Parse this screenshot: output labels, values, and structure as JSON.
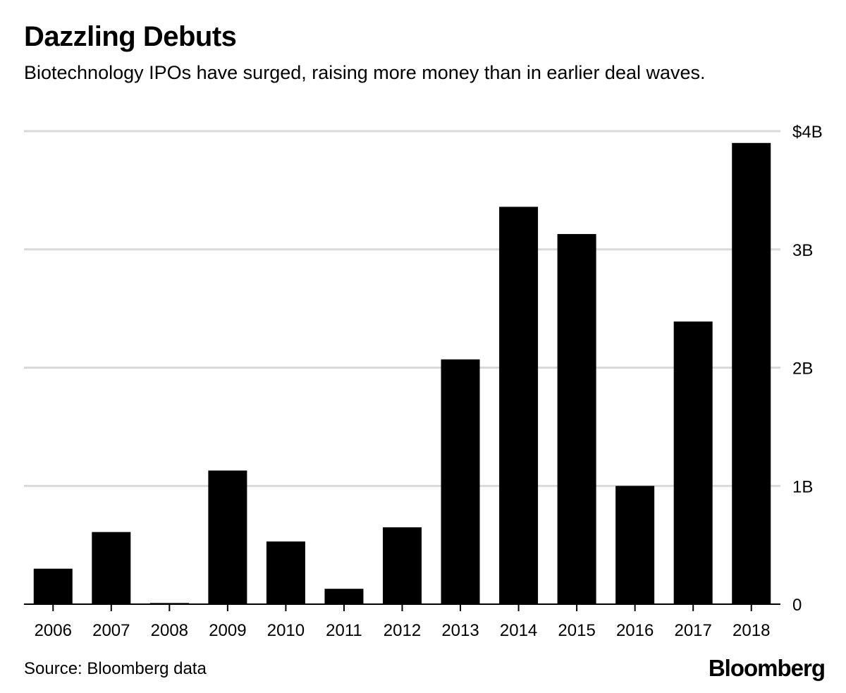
{
  "header": {
    "title": "Dazzling Debuts",
    "subtitle": "Biotechnology IPOs have surged, raising more money than in earlier deal waves."
  },
  "footer": {
    "source": "Source: Bloomberg data",
    "brand": "Bloomberg"
  },
  "colors": {
    "bar": "#000000",
    "grid": "#d9d9d9",
    "axis": "#000000"
  },
  "chart_data": {
    "type": "bar",
    "title": "Dazzling Debuts",
    "subtitle": "Biotechnology IPOs have surged, raising more money than in earlier deal waves.",
    "categories": [
      "2006",
      "2007",
      "2008",
      "2009",
      "2010",
      "2011",
      "2012",
      "2013",
      "2014",
      "2015",
      "2016",
      "2017",
      "2018"
    ],
    "values": [
      0.3,
      0.61,
      0.01,
      1.13,
      0.53,
      0.13,
      0.65,
      2.07,
      3.36,
      3.13,
      1.0,
      2.39,
      3.9
    ],
    "unit": "billions USD",
    "ylim": [
      0,
      4
    ],
    "yticks": [
      0,
      1,
      2,
      3,
      4
    ],
    "ytick_labels": [
      "0",
      "1B",
      "2B",
      "3B",
      "$4B"
    ],
    "y_axis_side": "right",
    "grid": true,
    "xlabel": "",
    "ylabel": ""
  }
}
